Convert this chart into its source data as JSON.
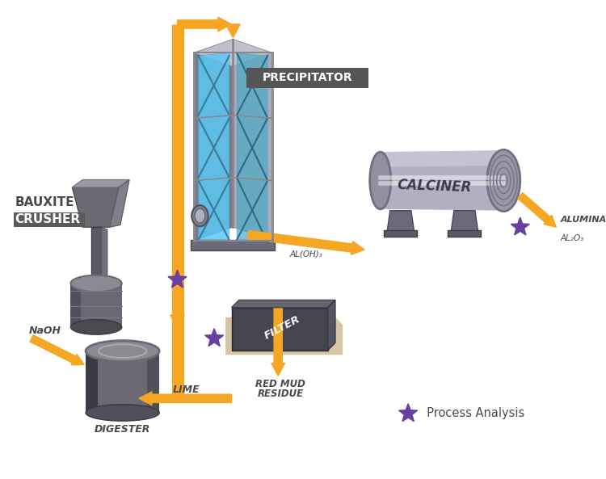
{
  "bg_color": "#ffffff",
  "orange": "#F5A623",
  "gray_dark": "#4A4A4A",
  "gray_mid": "#808080",
  "gray_light": "#B0B0B0",
  "gray_lighter": "#D0D0D0",
  "blue": "#5BC8F5",
  "blue_dark": "#2E9EC9",
  "purple_star": "#6B3FA0",
  "labels": {
    "bauxite_crusher": [
      "BAUXITE",
      "CRUSHER"
    ],
    "precipitator": "PRECIPITATOR",
    "calciner": "CALCINER",
    "filter": "FILTER",
    "digester": "DIGESTER",
    "naoh": "NaOH",
    "lime": "LIME",
    "red_mud": [
      "RED MUD",
      "RESIDUE"
    ],
    "aloh3": "AL(OH)₃",
    "alumina": [
      "ALUMINA",
      "AL₂O₃"
    ],
    "process_analysis": "  Process Analysis"
  }
}
